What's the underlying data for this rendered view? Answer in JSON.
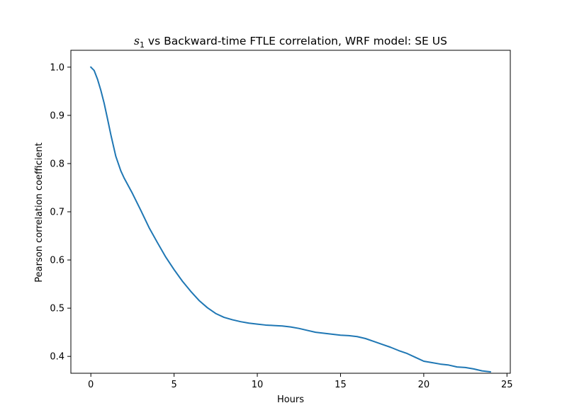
{
  "chart_data": {
    "type": "line",
    "title": {
      "symbol": "s",
      "subscript": "1",
      "text": " vs Backward-time FTLE correlation, WRF model: SE US"
    },
    "xlabel": "Hours",
    "ylabel": "Pearson correlation coefficient",
    "xlim": [
      -1.2,
      25.2
    ],
    "ylim": [
      0.365,
      1.035
    ],
    "xticks": [
      0,
      5,
      10,
      15,
      20,
      25
    ],
    "yticks": [
      0.4,
      0.5,
      0.6,
      0.7,
      0.8,
      0.9,
      1.0
    ],
    "xtick_labels": [
      "0",
      "5",
      "10",
      "15",
      "20",
      "25"
    ],
    "ytick_labels": [
      "0.4",
      "0.5",
      "0.6",
      "0.7",
      "0.8",
      "0.9",
      "1.0"
    ],
    "grid": false,
    "series": [
      {
        "color": "#1f77b4",
        "x": [
          0,
          0.2,
          0.4,
          0.6,
          0.8,
          1.0,
          1.2,
          1.5,
          1.8,
          2.0,
          2.5,
          3.0,
          3.5,
          4.0,
          4.5,
          5.0,
          5.5,
          6.0,
          6.5,
          7.0,
          7.5,
          8.0,
          8.5,
          9.0,
          9.5,
          10.0,
          10.5,
          11.0,
          11.5,
          12.0,
          12.5,
          13.0,
          13.5,
          14.0,
          14.5,
          15.0,
          15.5,
          16.0,
          16.5,
          17.0,
          17.5,
          18.0,
          18.5,
          19.0,
          19.5,
          20.0,
          20.5,
          21.0,
          21.5,
          22.0,
          22.5,
          23.0,
          23.5,
          24.0
        ],
        "y": [
          1.0,
          0.993,
          0.975,
          0.952,
          0.925,
          0.893,
          0.86,
          0.815,
          0.785,
          0.77,
          0.738,
          0.703,
          0.667,
          0.636,
          0.606,
          0.58,
          0.556,
          0.535,
          0.516,
          0.501,
          0.489,
          0.481,
          0.476,
          0.472,
          0.469,
          0.467,
          0.465,
          0.464,
          0.463,
          0.461,
          0.458,
          0.454,
          0.45,
          0.448,
          0.446,
          0.444,
          0.443,
          0.441,
          0.437,
          0.431,
          0.425,
          0.419,
          0.412,
          0.406,
          0.398,
          0.39,
          0.387,
          0.384,
          0.382,
          0.378,
          0.377,
          0.374,
          0.37,
          0.368
        ]
      }
    ]
  }
}
